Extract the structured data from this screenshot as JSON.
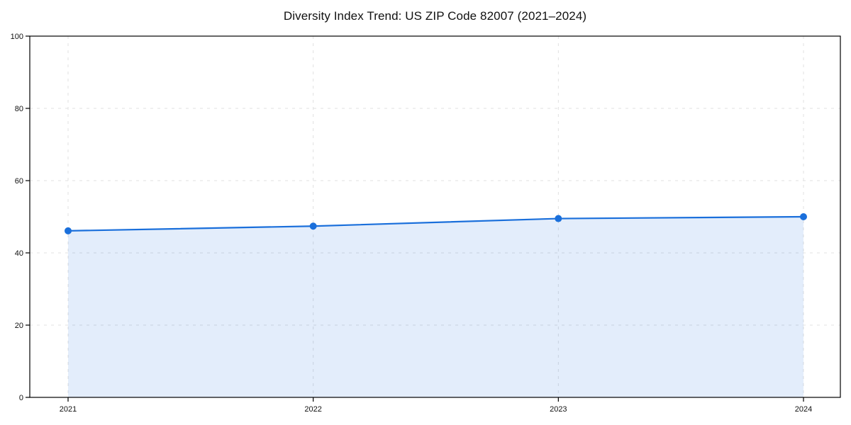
{
  "page": {
    "background": "#ffffff"
  },
  "chart_data": {
    "type": "area",
    "title": "Diversity Index Trend: US ZIP Code 82007 (2021–2024)",
    "categories": [
      "2021",
      "2022",
      "2023",
      "2024"
    ],
    "series": [
      {
        "name": "Diversity Index",
        "values": [
          46.1,
          47.4,
          49.5,
          50.0
        ]
      }
    ],
    "xlabel": "",
    "ylabel": "",
    "ylim": [
      0,
      100
    ],
    "y_ticks": [
      0,
      20,
      40,
      60,
      80,
      100
    ],
    "grid": "dashed-both-axes",
    "legend": "none",
    "marker": "circle",
    "colors": {
      "line": "#1a6fdb",
      "marker": "#1a6fdb",
      "area_fill": "rgba(26,111,219,0.12)",
      "gridline": "#e0e0e0",
      "axis": "#000000",
      "tick_label": "#111111",
      "title": "#111111"
    }
  }
}
